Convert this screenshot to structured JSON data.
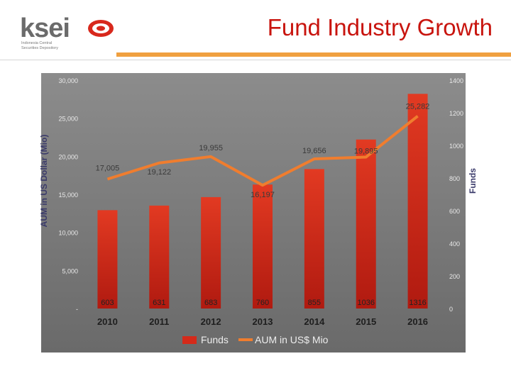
{
  "header": {
    "title": "Fund Industry Growth",
    "logo_text": "ksei",
    "logo_subtitle_1": "Indonesia Central",
    "logo_subtitle_2": "Securities Depository"
  },
  "colors": {
    "title": "#c8140e",
    "accent_bar": "#f0a040",
    "bar": "#d42a1a",
    "line": "#f07d2e",
    "plot_bg": "#888888"
  },
  "chart_data": {
    "type": "bar+line",
    "categories": [
      "2010",
      "2011",
      "2012",
      "2013",
      "2014",
      "2015",
      "2016"
    ],
    "left_axis": {
      "label": "AUM in US Dollar (Mio)",
      "ticks": [
        "-",
        "5,000",
        "10,000",
        "15,000",
        "20,000",
        "25,000",
        "30,000"
      ],
      "range": [
        0,
        30000
      ]
    },
    "right_axis": {
      "label": "Funds",
      "ticks": [
        "0",
        "200",
        "400",
        "600",
        "800",
        "1000",
        "1200",
        "1400"
      ],
      "range": [
        0,
        1400
      ]
    },
    "series": [
      {
        "name": "Funds",
        "kind": "bar",
        "axis": "right",
        "values": [
          603,
          631,
          683,
          760,
          855,
          1036,
          1316
        ],
        "labels": [
          "603",
          "631",
          "683",
          "760",
          "855",
          "1036",
          "1316"
        ]
      },
      {
        "name": "AUM in US$ Mio",
        "kind": "line",
        "axis": "left",
        "values": [
          17005,
          19122,
          19955,
          16197,
          19656,
          19895,
          25282
        ],
        "labels": [
          "17,005",
          "19,122",
          "19,955",
          "16,197",
          "19,656",
          "19,895",
          "25,282"
        ]
      }
    ],
    "legend": [
      "Funds",
      "AUM in US$ Mio"
    ],
    "legend_position": "bottom",
    "grid": false
  }
}
